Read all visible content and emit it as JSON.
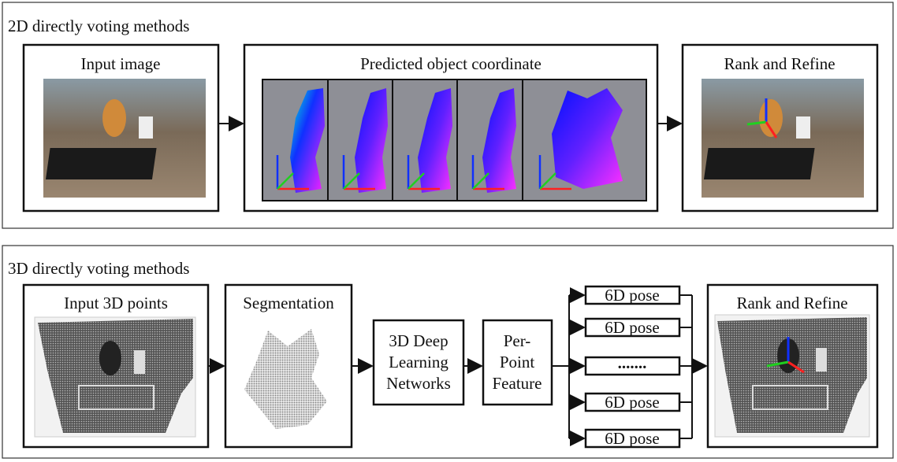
{
  "top_panel": {
    "title": "2D directly voting methods",
    "boxes": [
      "Input image",
      "Predicted object coordinate",
      "Rank and Refine"
    ]
  },
  "bottom_panel": {
    "title": "3D directly voting methods",
    "boxes": [
      "Input 3D points",
      "Segmentation",
      "Rank and Refine"
    ],
    "network": [
      "3D Deep",
      "Learning",
      "Networks"
    ],
    "feature": [
      "Per-",
      "Point",
      "Feature"
    ],
    "poses": [
      "6D pose",
      "6D pose",
      ".......",
      "6D pose",
      "6D pose"
    ]
  }
}
